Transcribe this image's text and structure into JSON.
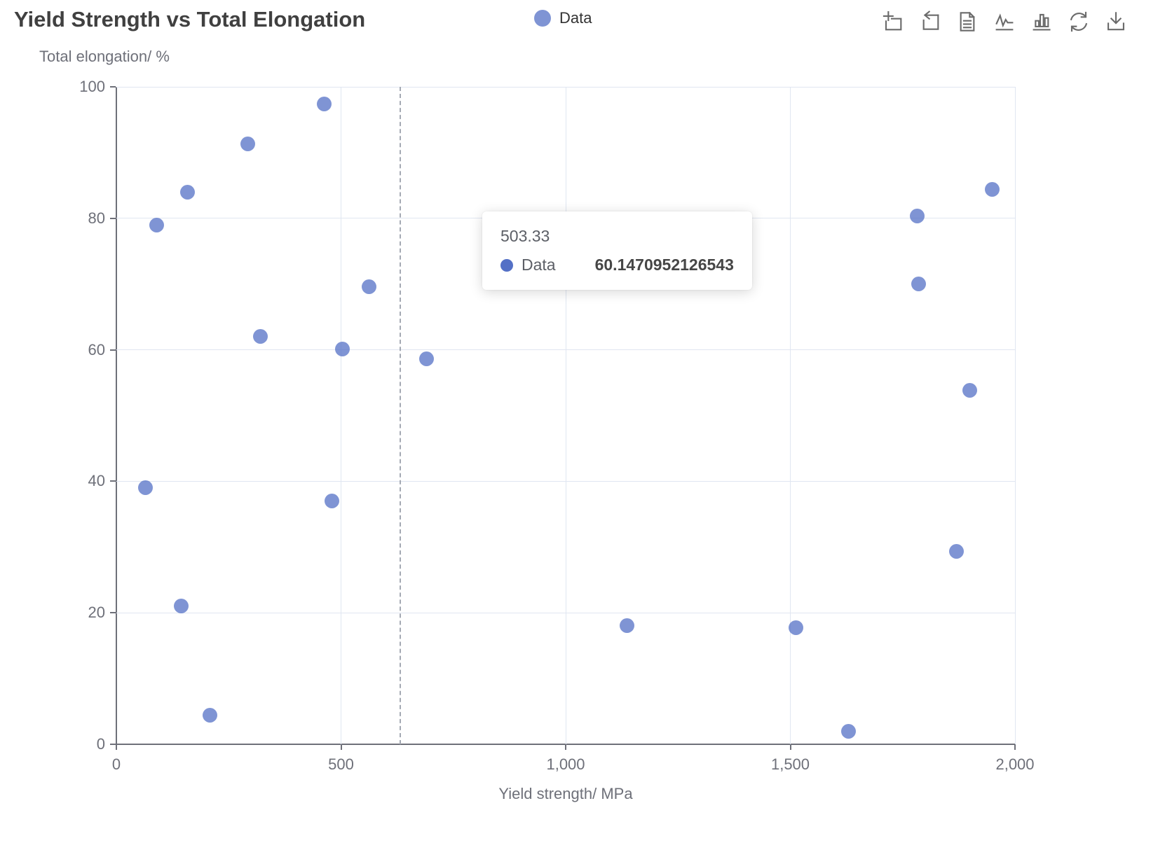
{
  "header": {
    "title": "Yield Strength vs Total Elongation"
  },
  "toolbox": {
    "icons": [
      {
        "name": "data-zoom-icon"
      },
      {
        "name": "zoom-reset-icon"
      },
      {
        "name": "data-view-icon"
      },
      {
        "name": "switch-line-chart-icon"
      },
      {
        "name": "switch-bar-chart-icon"
      },
      {
        "name": "restore-icon"
      },
      {
        "name": "save-image-download-icon"
      }
    ]
  },
  "tooltip": {
    "title": "503.33",
    "series_label": "Data",
    "value": "60.1470952126543"
  },
  "colors": {
    "accent": "#5470C6",
    "grid_line": "#E0E6F1",
    "axis_line": "#6E7079",
    "axis_label": "#6E7079",
    "title_text": "#404040"
  },
  "chart_data": {
    "type": "scatter",
    "title": "Yield Strength vs Total Elongation",
    "xlabel": "Yield strength/ MPa",
    "ylabel": "Total elongation/ %",
    "xlim": [
      0,
      2000
    ],
    "ylim": [
      0,
      100
    ],
    "grid": true,
    "legend": {
      "entries": [
        "Data"
      ],
      "position": "top-center"
    },
    "x_ticks": {
      "values": [
        0,
        500,
        1000,
        1500,
        2000
      ],
      "labels": [
        "0",
        "500",
        "1,000",
        "1,500",
        "2,000"
      ]
    },
    "y_ticks": {
      "values": [
        0,
        20,
        40,
        60,
        80,
        100
      ],
      "labels": [
        "0",
        "20",
        "40",
        "60",
        "80",
        "100"
      ]
    },
    "series": [
      {
        "name": "Data",
        "color": "#5470C6",
        "points": [
          [
            65,
            39
          ],
          [
            90,
            79
          ],
          [
            144,
            21
          ],
          [
            159,
            84
          ],
          [
            208,
            4.4
          ],
          [
            293,
            91.3
          ],
          [
            320,
            62
          ],
          [
            463,
            97.4
          ],
          [
            480,
            37
          ],
          [
            503.33,
            60.1470952126543
          ],
          [
            562,
            69.6
          ],
          [
            690,
            58.6
          ],
          [
            1137,
            18
          ],
          [
            1513,
            17.7
          ],
          [
            1630,
            2
          ],
          [
            1783,
            80.3
          ],
          [
            1786,
            70
          ],
          [
            1869,
            29.3
          ],
          [
            1900,
            53.8
          ],
          [
            1950,
            84.4
          ]
        ]
      }
    ],
    "hovered_point": {
      "x": 503.33,
      "y": 60.1470952126543
    },
    "axis_pointer": {
      "x": 632,
      "style": "dashed"
    }
  }
}
